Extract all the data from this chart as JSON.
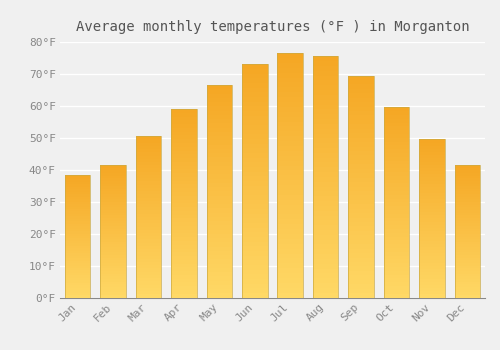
{
  "title": "Average monthly temperatures (°F ) in Morganton",
  "months": [
    "Jan",
    "Feb",
    "Mar",
    "Apr",
    "May",
    "Jun",
    "Jul",
    "Aug",
    "Sep",
    "Oct",
    "Nov",
    "Dec"
  ],
  "values": [
    38.5,
    41.5,
    50.5,
    59.0,
    66.5,
    73.0,
    76.5,
    75.5,
    69.5,
    59.5,
    49.5,
    41.5
  ],
  "bar_color_top": "#F5A623",
  "bar_color_bottom": "#FFD966",
  "ylim": [
    0,
    80
  ],
  "yticks": [
    0,
    10,
    20,
    30,
    40,
    50,
    60,
    70,
    80
  ],
  "ytick_labels": [
    "0°F",
    "10°F",
    "20°F",
    "30°F",
    "40°F",
    "50°F",
    "60°F",
    "70°F",
    "80°F"
  ],
  "background_color": "#f0f0f0",
  "plot_bg_color": "#f0f0f0",
  "grid_color": "#ffffff",
  "title_fontsize": 10,
  "tick_fontsize": 8,
  "tick_color": "#888888",
  "bar_edge_color": "#ccaa44",
  "bar_edge_width": 0.5
}
